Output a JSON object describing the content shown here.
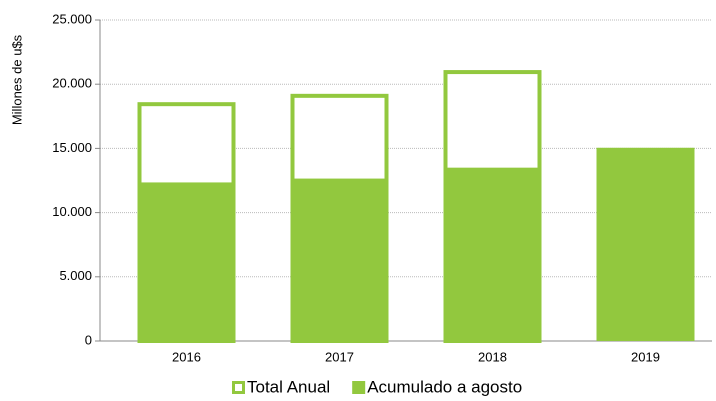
{
  "chart_data": {
    "type": "bar",
    "y_label": "Millones de u$s",
    "categories": [
      "2016",
      "2017",
      "2018",
      "2019"
    ],
    "series": [
      {
        "name": "Total Anual",
        "color": "#92c83e",
        "values": [
          18600,
          19250,
          21100,
          null
        ]
      },
      {
        "name": "Acumulado a agosto",
        "color": "#92c83e",
        "values": [
          12350,
          12650,
          13500,
          15050
        ]
      }
    ],
    "ylim": [
      0,
      25000
    ],
    "yticks": [
      0,
      {
        "value": 5000,
        "label": "5.000"
      },
      {
        "value": 10000,
        "label": "10.000"
      },
      {
        "value": 15000,
        "label": "15.000"
      },
      {
        "value": 20000,
        "label": "20.000"
      },
      {
        "value": 25000,
        "label": "25.000"
      }
    ],
    "grid": true
  }
}
